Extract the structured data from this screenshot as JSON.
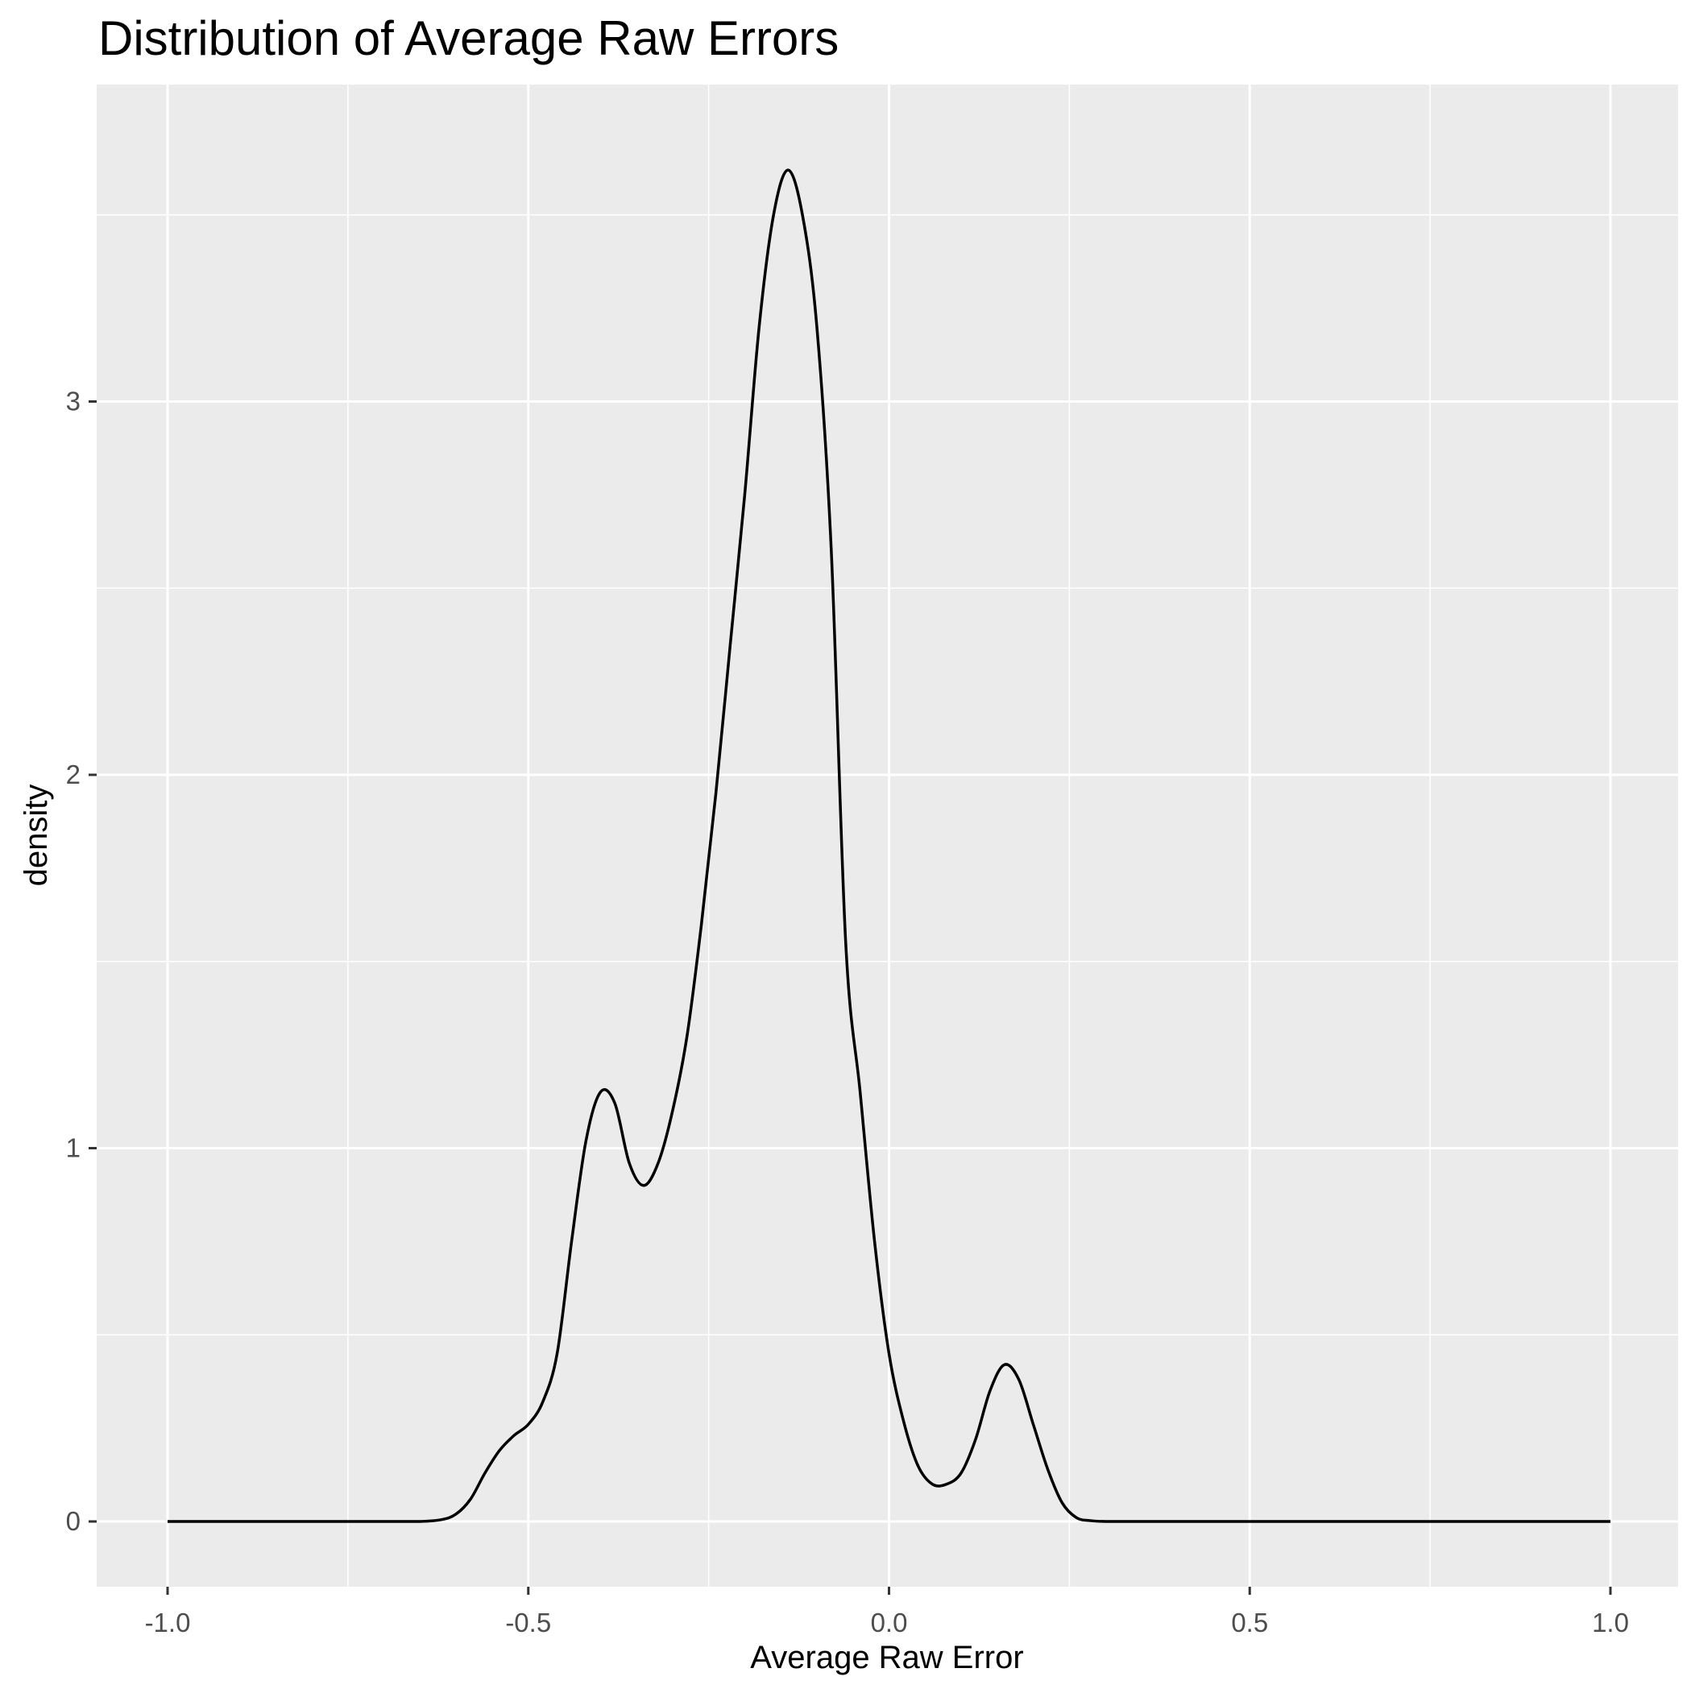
{
  "chart_data": {
    "type": "area",
    "title": "Distribution of Average Raw Errors",
    "xlabel": "Average Raw Error",
    "ylabel": "density",
    "xlim": [
      -1.0,
      1.0
    ],
    "ylim": [
      0,
      3.76
    ],
    "x_ticks": [
      "-1.0",
      "-0.5",
      "0.0",
      "0.5",
      "1.0"
    ],
    "y_ticks": [
      "0",
      "1",
      "2",
      "3"
    ],
    "grid": true,
    "legend": "none",
    "colors": {
      "panel_background": "#ebebeb",
      "grid": "#ffffff",
      "line": "#000000",
      "tick_text": "#4d4d4d"
    },
    "series": [
      {
        "x": [
          -1.0,
          -0.7,
          -0.65,
          -0.62,
          -0.6,
          -0.58,
          -0.56,
          -0.54,
          -0.52,
          -0.5,
          -0.48,
          -0.46,
          -0.44,
          -0.42,
          -0.4,
          -0.38,
          -0.36,
          -0.34,
          -0.32,
          -0.3,
          -0.28,
          -0.26,
          -0.24,
          -0.22,
          -0.2,
          -0.18,
          -0.16,
          -0.14,
          -0.12,
          -0.1,
          -0.08,
          -0.06,
          -0.04,
          -0.02,
          0.0,
          0.02,
          0.04,
          0.06,
          0.08,
          0.1,
          0.12,
          0.14,
          0.16,
          0.18,
          0.2,
          0.22,
          0.24,
          0.26,
          0.28,
          0.3,
          0.32,
          0.34,
          0.36,
          0.38,
          0.4,
          0.45,
          0.5,
          1.0
        ],
        "y": [
          0.0,
          0.0,
          0.0,
          0.005,
          0.02,
          0.06,
          0.13,
          0.19,
          0.23,
          0.26,
          0.32,
          0.45,
          0.75,
          1.02,
          1.15,
          1.12,
          0.96,
          0.9,
          0.96,
          1.1,
          1.3,
          1.6,
          1.95,
          2.35,
          2.75,
          3.2,
          3.5,
          3.62,
          3.5,
          3.2,
          2.6,
          1.55,
          1.15,
          0.75,
          0.45,
          0.27,
          0.15,
          0.1,
          0.1,
          0.13,
          0.22,
          0.35,
          0.42,
          0.38,
          0.26,
          0.14,
          0.05,
          0.01,
          0.002,
          0.0,
          0.0,
          0.0,
          0.0,
          0.0,
          0.0,
          0.0,
          0.0,
          0.0
        ]
      }
    ]
  }
}
